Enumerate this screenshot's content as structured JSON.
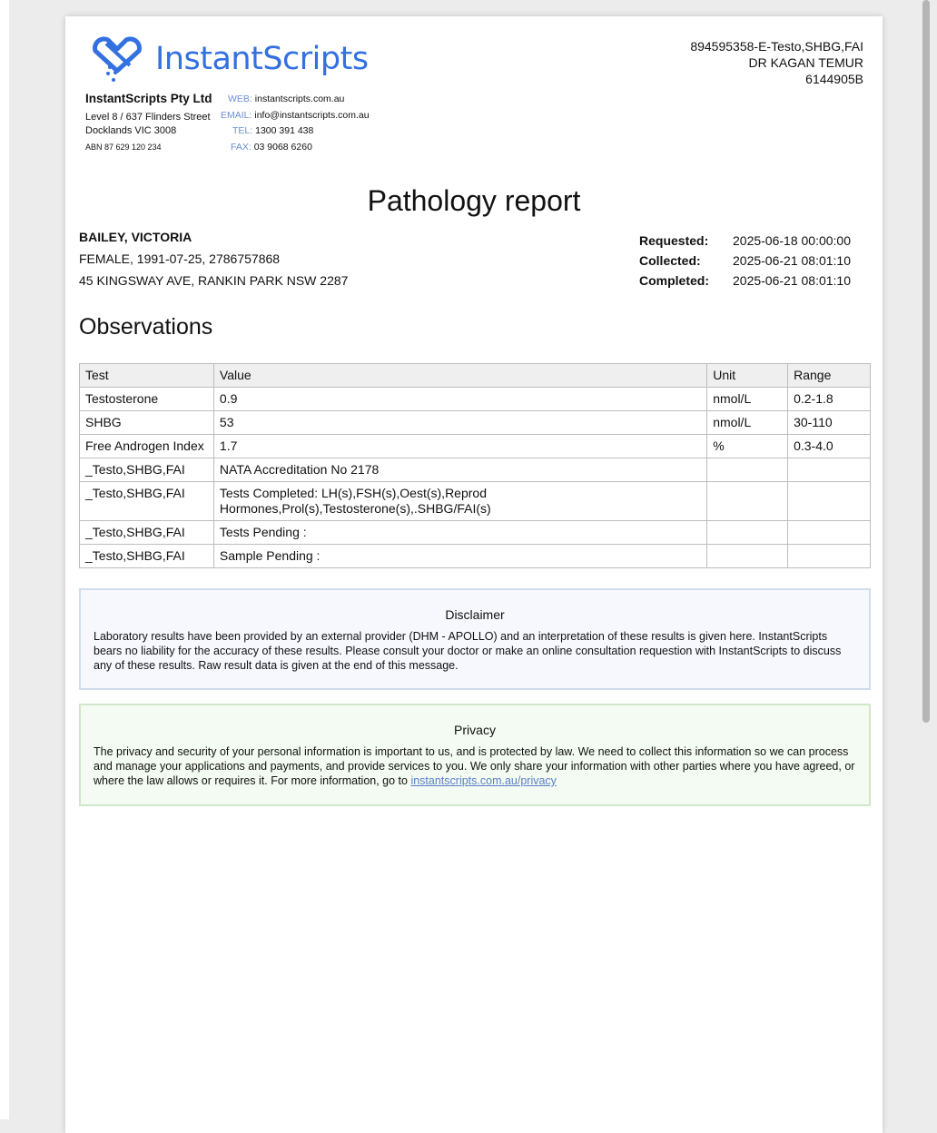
{
  "brand": {
    "name": "InstantScripts",
    "color": "#3370e0"
  },
  "company": {
    "name": "InstantScripts Pty Ltd",
    "address1": "Level 8 / 637 Flinders Street",
    "address2": "Docklands VIC 3008",
    "abn": "ABN 87 629 120 234"
  },
  "contact": [
    {
      "key": "WEB:",
      "value": "instantscripts.com.au"
    },
    {
      "key": "EMAIL:",
      "value": "info@instantscripts.com.au"
    },
    {
      "key": "TEL:",
      "value": "1300 391 438"
    },
    {
      "key": "FAX:",
      "value": "03 9068 6260"
    }
  ],
  "reference": {
    "line1": "894595358-E-Testo,SHBG,FAI",
    "line2": "DR KAGAN TEMUR",
    "line3": "6144905B"
  },
  "title": "Pathology report",
  "patient": {
    "name": "BAILEY, VICTORIA",
    "details": "FEMALE, 1991-07-25, 2786757868",
    "address": "45 KINGSWAY AVE, RANKIN PARK NSW 2287"
  },
  "dates": [
    {
      "label": "Requested:",
      "value": "2025-06-18 00:00:00"
    },
    {
      "label": "Collected:",
      "value": "2025-06-21 08:01:10"
    },
    {
      "label": "Completed:",
      "value": "2025-06-21 08:01:10"
    }
  ],
  "observations": {
    "heading": "Observations",
    "headers": [
      "Test",
      "Value",
      "Unit",
      "Range"
    ],
    "rows": [
      [
        "Testosterone",
        "0.9",
        "nmol/L",
        "0.2-1.8"
      ],
      [
        "SHBG",
        "53",
        "nmol/L",
        "30-110"
      ],
      [
        "Free Androgen Index",
        "1.7",
        "%",
        "0.3-4.0"
      ],
      [
        "_Testo,SHBG,FAI",
        "NATA Accreditation No 2178",
        "",
        ""
      ],
      [
        "_Testo,SHBG,FAI",
        "Tests Completed: LH(s),FSH(s),Oest(s),Reprod Hormones,Prol(s),Testosterone(s),.SHBG/FAI(s)",
        "",
        ""
      ],
      [
        "_Testo,SHBG,FAI",
        "Tests Pending  :",
        "",
        ""
      ],
      [
        "_Testo,SHBG,FAI",
        "Sample Pending :",
        "",
        ""
      ]
    ]
  },
  "disclaimer": {
    "title": "Disclaimer",
    "text": "Laboratory results have been provided by an external provider (DHM - APOLLO) and an interpretation of these results is given here. InstantScripts bears no liability for the accuracy of these results. Please consult your doctor or make an online consultation requestion with InstantScripts to discuss any of these results. Raw result data is given at the end of this message."
  },
  "privacy": {
    "title": "Privacy",
    "text": "The privacy and security of your personal information is important to us, and is protected by law. We need to collect this information so we can process and manage your applications and payments, and provide services to you. We only share your information with other parties where you have agreed, or where the law allows or requires it. For more information, go to ",
    "link": "instantscripts.com.au/privacy"
  }
}
